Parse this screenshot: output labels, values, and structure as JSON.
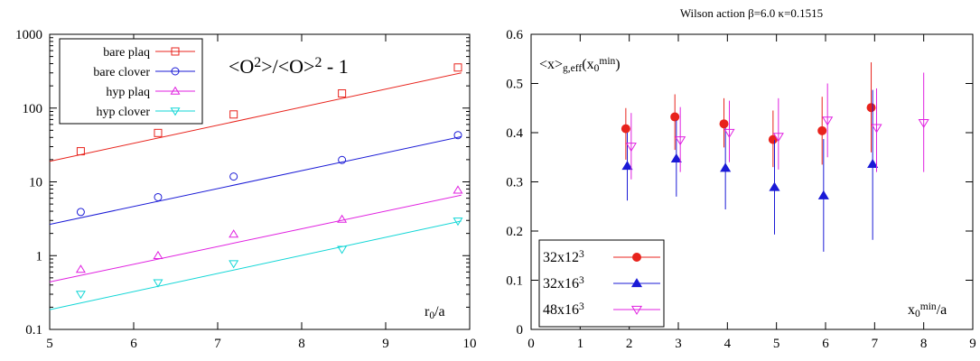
{
  "chart_data": [
    {
      "type": "scatter",
      "title_parts": [
        "<O",
        "2",
        ">/<O>",
        "2",
        " - 1"
      ],
      "xlabel_parts": [
        "r",
        "0",
        "/a"
      ],
      "ylabel": "",
      "xlim": [
        5,
        10
      ],
      "ylim": [
        0.1,
        1000
      ],
      "yscale": "log",
      "grid": false,
      "legend_position": "top-left",
      "xticks": [
        5,
        6,
        7,
        8,
        9,
        10
      ],
      "xtick_labels": [
        "5",
        "6",
        "7",
        "8",
        "9",
        "10"
      ],
      "yticks": [
        0.1,
        1,
        10,
        100,
        1000
      ],
      "ytick_labels": [
        "0.1",
        "1",
        "10",
        "100",
        "1000"
      ],
      "series": [
        {
          "name": "bare plaq",
          "marker": "square",
          "color": "#e8231c",
          "x": [
            5.37,
            6.29,
            7.19,
            8.48,
            9.86
          ],
          "y": [
            26,
            46,
            82,
            158,
            355
          ],
          "fit": {
            "x": [
              5,
              9.9
            ],
            "y": [
              19,
              300
            ]
          }
        },
        {
          "name": "bare clover",
          "marker": "circle",
          "color": "#1a1ad6",
          "x": [
            5.37,
            6.29,
            7.19,
            8.48,
            9.86
          ],
          "y": [
            3.9,
            6.2,
            11.8,
            19.8,
            43
          ],
          "fit": {
            "x": [
              5,
              9.9
            ],
            "y": [
              2.65,
              41
            ]
          }
        },
        {
          "name": "hyp plaq",
          "marker": "triangle-up",
          "color": "#e020e0",
          "x": [
            5.37,
            6.29,
            7.19,
            8.48,
            9.86
          ],
          "y": [
            0.65,
            1.0,
            1.95,
            3.1,
            7.7
          ],
          "fit": {
            "x": [
              5,
              9.9
            ],
            "y": [
              0.44,
              6.6
            ]
          }
        },
        {
          "name": "hyp clover",
          "marker": "triangle-down",
          "color": "#11d6d6",
          "x": [
            5.37,
            6.29,
            7.19,
            8.48,
            9.86
          ],
          "y": [
            0.3,
            0.43,
            0.78,
            1.22,
            2.95
          ],
          "fit": {
            "x": [
              5,
              9.9
            ],
            "y": [
              0.185,
              2.95
            ]
          }
        }
      ]
    },
    {
      "type": "scatter",
      "title": "Wilson action β=6.0 κ=0.1515",
      "ylabel_parts": [
        "<x>",
        "g,eff",
        "(x",
        "0",
        "min",
        ")"
      ],
      "xlabel_parts": [
        "x",
        "0",
        "min",
        "/a"
      ],
      "xlim": [
        0,
        9
      ],
      "ylim": [
        0,
        0.6
      ],
      "grid": false,
      "legend_position": "bottom-left",
      "xticks": [
        0,
        1,
        2,
        3,
        4,
        5,
        6,
        7,
        8,
        9
      ],
      "xtick_labels": [
        "0",
        "1",
        "2",
        "3",
        "4",
        "5",
        "6",
        "7",
        "8",
        "9"
      ],
      "yticks": [
        0,
        0.1,
        0.2,
        0.3,
        0.4,
        0.5,
        0.6
      ],
      "ytick_labels": [
        "0",
        "0.1",
        "0.2",
        "0.3",
        "0.4",
        "0.5",
        "0.6"
      ],
      "series": [
        {
          "name_parts": [
            "32x12",
            "3"
          ],
          "marker": "filled-circle",
          "color": "#e8231c",
          "x": [
            1.93,
            2.93,
            3.93,
            4.93,
            5.93,
            6.93
          ],
          "y": [
            0.408,
            0.432,
            0.418,
            0.386,
            0.404,
            0.451
          ],
          "yerr_low": [
            0.345,
            0.365,
            0.37,
            0.33,
            0.335,
            0.36
          ],
          "yerr_high": [
            0.45,
            0.478,
            0.47,
            0.445,
            0.473,
            0.543
          ]
        },
        {
          "name_parts": [
            "32x16",
            "3"
          ],
          "marker": "filled-triangle-up",
          "color": "#1a1ad6",
          "x": [
            1.96,
            2.96,
            3.96,
            4.96,
            5.96,
            6.96
          ],
          "y": [
            0.332,
            0.347,
            0.328,
            0.289,
            0.272,
            0.336
          ],
          "yerr_low": [
            0.262,
            0.27,
            0.244,
            0.193,
            0.158,
            0.182
          ],
          "yerr_high": [
            0.4,
            0.425,
            0.41,
            0.385,
            0.387,
            0.487
          ]
        },
        {
          "name_parts": [
            "48x16",
            "3"
          ],
          "marker": "triangle-down",
          "color": "#e020e0",
          "x": [
            2.04,
            3.04,
            4.04,
            5.04,
            6.04,
            7.04,
            8.0
          ],
          "y": [
            0.372,
            0.385,
            0.4,
            0.392,
            0.425,
            0.41,
            0.42
          ],
          "yerr_low": [
            0.305,
            0.32,
            0.34,
            0.325,
            0.35,
            0.32,
            0.32
          ],
          "yerr_high": [
            0.44,
            0.452,
            0.465,
            0.47,
            0.5,
            0.49,
            0.522
          ]
        }
      ]
    }
  ]
}
